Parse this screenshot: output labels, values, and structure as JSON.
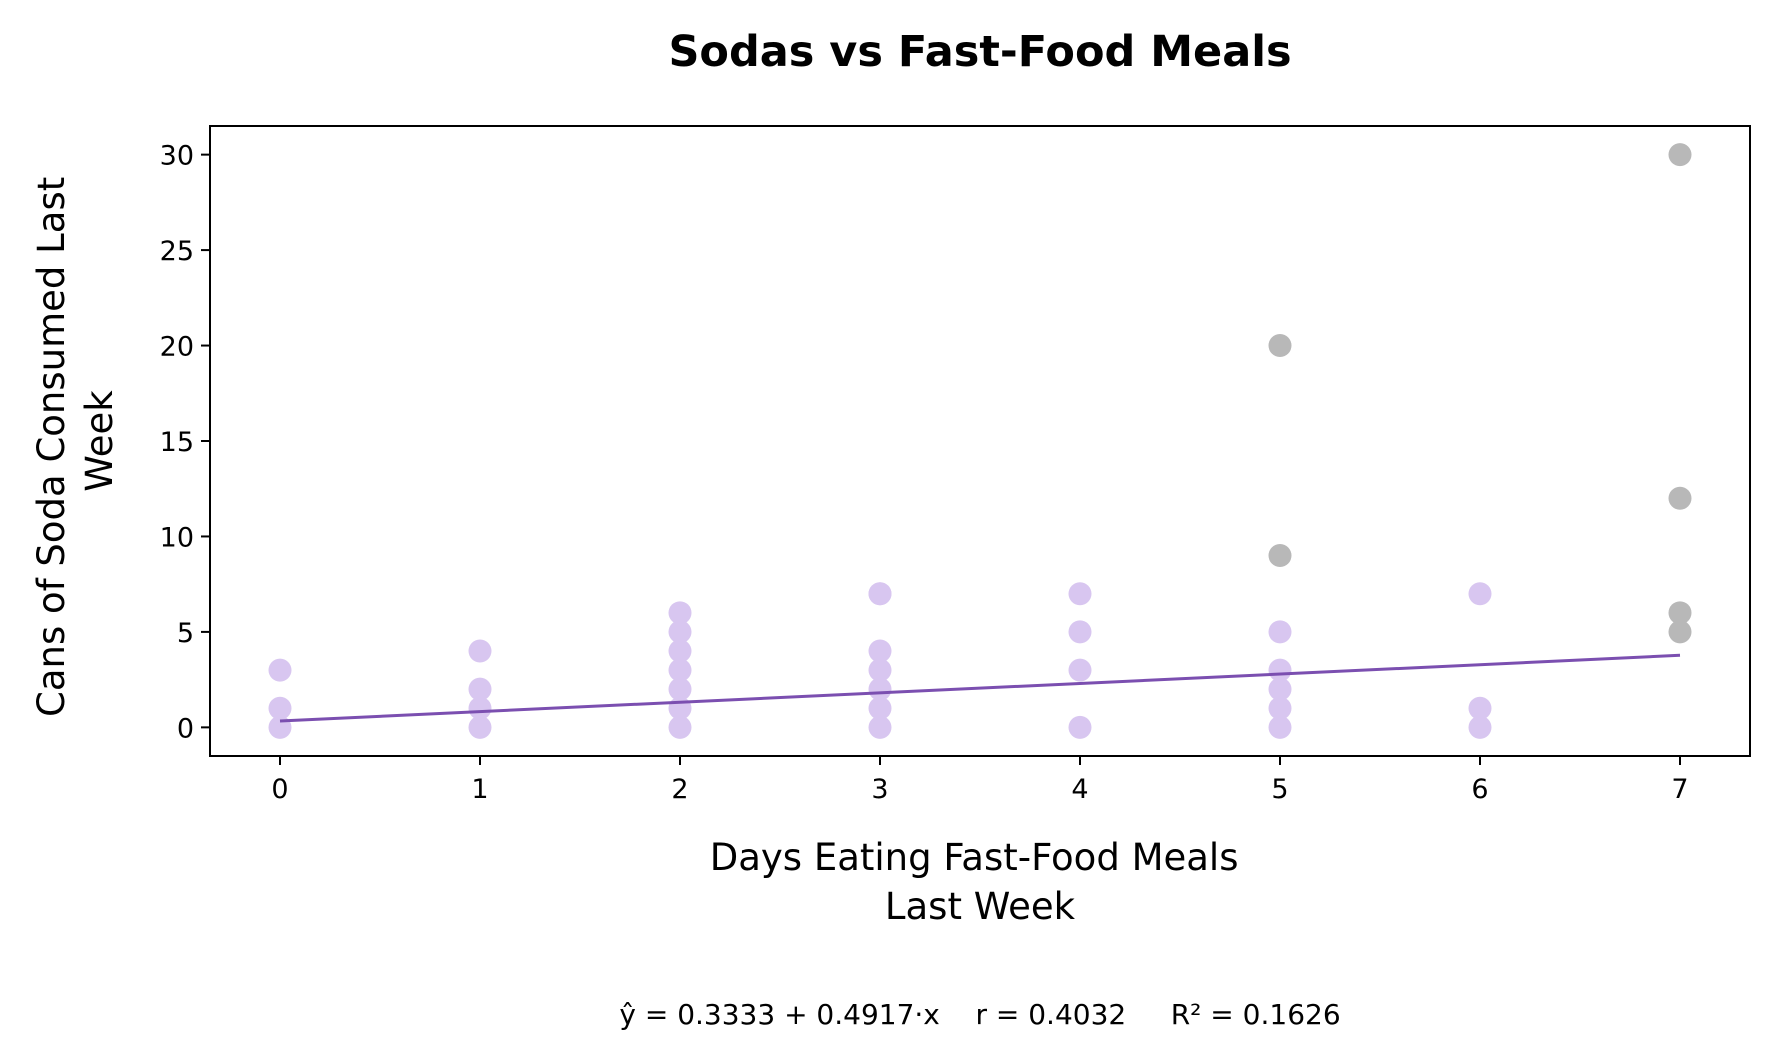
{
  "chart_data": {
    "type": "scatter",
    "title": "Sodas vs Fast-Food Meals",
    "xlabel": [
      "Days Eating Fast-Food Meals",
      "Last Week"
    ],
    "ylabel": [
      "Cans of Soda Consumed Last",
      "Week"
    ],
    "xlim": [
      -0.35,
      7.35
    ],
    "ylim": [
      -1.5,
      31.5
    ],
    "xticks": [
      0,
      1,
      2,
      3,
      4,
      5,
      6,
      7
    ],
    "yticks": [
      0,
      5,
      10,
      15,
      20,
      25,
      30
    ],
    "grid": false,
    "colors": {
      "points": "#d8c6f0",
      "outliers": "#b8b8b8",
      "fit_line": "#7b4fb0"
    },
    "series": [
      {
        "role": "points",
        "x": [
          0,
          0,
          0,
          1,
          1,
          1,
          1,
          2,
          2,
          2,
          2,
          2,
          2,
          2,
          3,
          3,
          3,
          3,
          3,
          3,
          3,
          4,
          4,
          4,
          4,
          5,
          5,
          5,
          5,
          5,
          6,
          6,
          6
        ],
        "y": [
          0,
          1,
          3,
          0,
          1,
          2,
          4,
          0,
          1,
          2,
          3,
          4,
          5,
          6,
          0,
          1,
          2,
          3,
          4,
          7,
          7,
          0,
          3,
          5,
          7,
          0,
          1,
          2,
          3,
          5,
          0,
          1,
          7
        ]
      },
      {
        "role": "outliers",
        "x": [
          5,
          5,
          7,
          7,
          7,
          7
        ],
        "y": [
          9,
          20,
          5,
          6,
          12,
          30
        ]
      }
    ],
    "fit": {
      "intercept": 0.3333,
      "slope": 0.4917,
      "x_range": [
        0,
        7
      ]
    },
    "annotation": "ŷ = 0.3333 + 0.4917·x    r = 0.4032     R² = 0.1626"
  }
}
